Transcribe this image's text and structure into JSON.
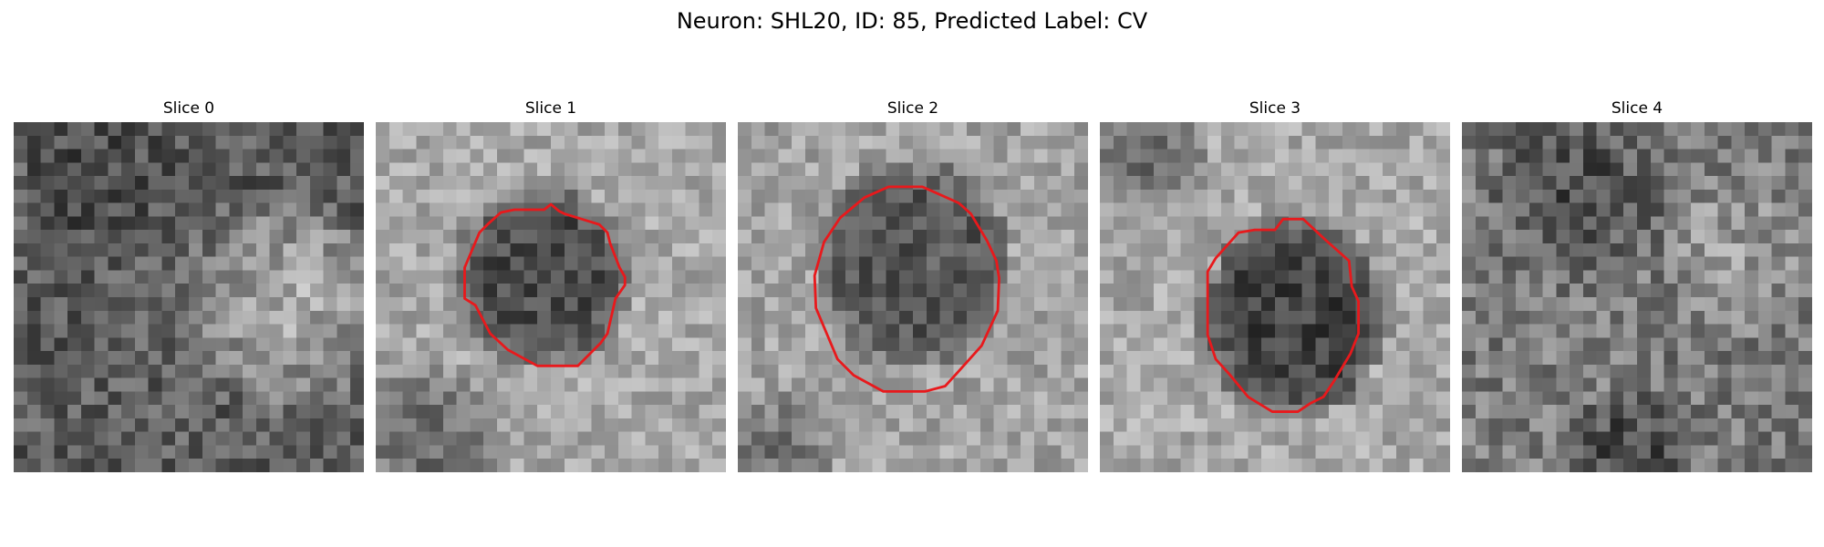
{
  "figure": {
    "title": "Neuron: SHL20, ID: 85, Predicted Label: CV"
  },
  "image_content": {
    "grid_size": 26,
    "colormap": "grayscale",
    "contour_color": "#e8191c"
  },
  "panels": [
    {
      "title": "Slice 0",
      "has_contour": false
    },
    {
      "title": "Slice 1",
      "has_contour": true
    },
    {
      "title": "Slice 2",
      "has_contour": true
    },
    {
      "title": "Slice 3",
      "has_contour": true
    },
    {
      "title": "Slice 4",
      "has_contour": false
    }
  ]
}
